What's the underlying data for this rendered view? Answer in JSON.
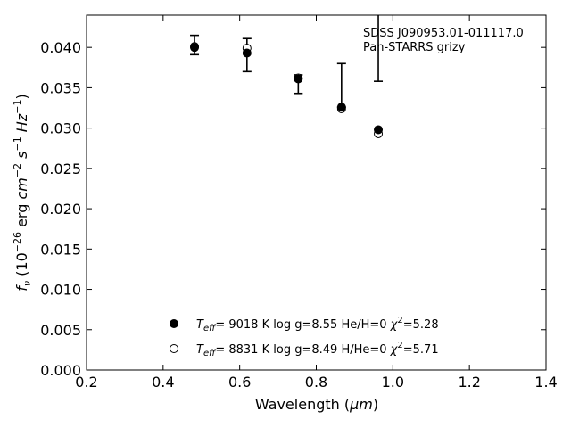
{
  "chart_data": {
    "type": "scatter",
    "xlabel_main": "Wavelength (",
    "xlabel_unit": "μm",
    "xlabel_close": ")",
    "ylabel": "f_ν (10^-26 erg cm^-2 s^-1 Hz^-1)",
    "xlim": [
      0.2,
      1.4
    ],
    "ylim": [
      0.0,
      0.044
    ],
    "x_ticks": [
      "0.2",
      "0.4",
      "0.6",
      "0.8",
      "1.0",
      "1.2",
      "1.4"
    ],
    "y_ticks": [
      "0.000",
      "0.005",
      "0.010",
      "0.015",
      "0.020",
      "0.025",
      "0.030",
      "0.035",
      "0.040"
    ],
    "annotation_lines": [
      "SDSS J090953.01-011117.0",
      "Pan-STARRS grizy"
    ],
    "observed": {
      "x": [
        0.482,
        0.619,
        0.753,
        0.866,
        0.962
      ],
      "y": [
        0.0403,
        0.0401,
        0.0355,
        0.0353,
        0.0436
      ],
      "yerr_low": [
        0.0012,
        0.0031,
        0.0012,
        0.0027,
        0.0078
      ],
      "yerr_high": [
        0.0012,
        0.001,
        0.0011,
        0.0027,
        0.0078
      ]
    },
    "series": [
      {
        "marker": "filled-circle",
        "x": [
          0.482,
          0.619,
          0.753,
          0.866,
          0.962
        ],
        "y": [
          0.04,
          0.0393,
          0.0361,
          0.0326,
          0.0298
        ],
        "legend": {
          "teff": "9018 K",
          "logg": "log g=8.55",
          "comp": "He/H=0",
          "chi2": "=5.28"
        }
      },
      {
        "marker": "open-circle",
        "x": [
          0.482,
          0.619,
          0.753,
          0.866,
          0.962
        ],
        "y": [
          0.0401,
          0.0399,
          0.0362,
          0.0324,
          0.0293
        ],
        "legend": {
          "teff": "8831 K",
          "logg": "log g=8.49",
          "comp": "H/He=0",
          "chi2": "=5.71"
        }
      }
    ]
  }
}
